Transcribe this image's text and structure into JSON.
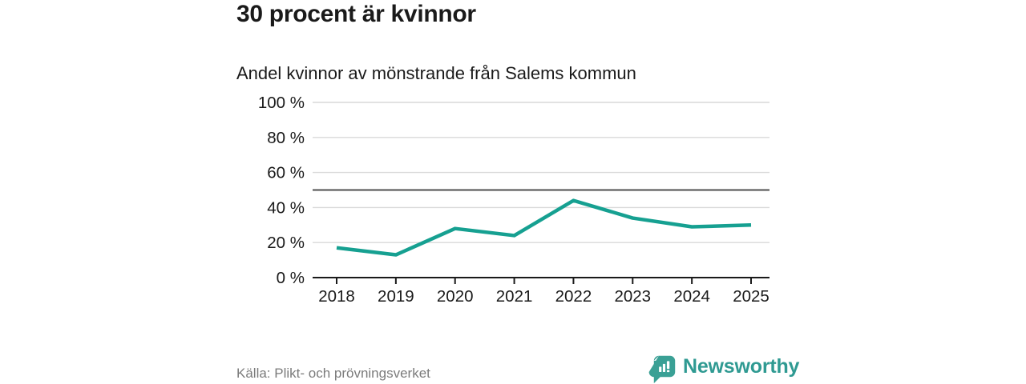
{
  "header": {
    "title": "30 procent är kvinnor",
    "subtitle": "Andel kvinnor av mönstrande från Salems kommun"
  },
  "footer": {
    "source": "Källa: Plikt- och prövningsverket",
    "brand_name": "Newsworthy"
  },
  "colors": {
    "line": "#16a091",
    "grid": "#d9d9d9",
    "reference_line": "#4d4d4d",
    "axis": "#1a1a1a",
    "tick_text": "#1a1a1a",
    "source_text": "#7b7b7b",
    "brand": "#2f9a92"
  },
  "icons": {
    "brand_logo": "bar-chart-speech-bubble"
  },
  "chart_data": {
    "type": "line",
    "title": "Andel kvinnor av mönstrande från Salems kommun",
    "x": [
      "2018",
      "2019",
      "2020",
      "2021",
      "2022",
      "2023",
      "2024",
      "2025"
    ],
    "series": [
      {
        "name": "Andel kvinnor",
        "values": [
          17,
          13,
          28,
          24,
          44,
          34,
          29,
          30
        ]
      }
    ],
    "unit": "%",
    "ylim": [
      0,
      100
    ],
    "yticks": [
      0,
      20,
      40,
      60,
      80,
      100
    ],
    "ytick_labels": [
      "0 %",
      "20 %",
      "40 %",
      "60 %",
      "80 %",
      "100 %"
    ],
    "reference_line": 50,
    "grid": true,
    "legend": "none"
  }
}
